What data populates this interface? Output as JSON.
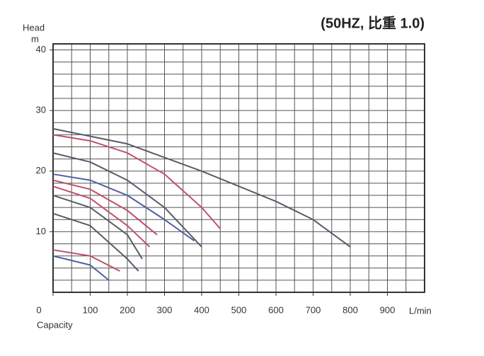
{
  "chart_data": {
    "type": "line",
    "title": "(50HZ, 比重 1.0)",
    "y_label": "Head",
    "y_unit": "m",
    "x_unit": "L/min",
    "x_label": "Capacity",
    "xlim": [
      0,
      1000
    ],
    "ylim": [
      0,
      41
    ],
    "xticks": [
      0,
      100,
      200,
      300,
      400,
      500,
      600,
      700,
      800,
      900
    ],
    "yticks": [
      10,
      20,
      30,
      40
    ],
    "grid": true,
    "minor_grid": {
      "x_step": 50,
      "y_step": 2
    },
    "series": [
      {
        "color": "#5a5a6a",
        "x": [
          0,
          200,
          400,
          600,
          700,
          800
        ],
        "values": [
          27,
          24.5,
          20,
          15,
          12,
          7.5
        ]
      },
      {
        "color": "#c0506a",
        "x": [
          0,
          100,
          200,
          300,
          400,
          450
        ],
        "values": [
          26,
          25,
          23,
          19.5,
          14,
          10.5
        ]
      },
      {
        "color": "#5a5a6a",
        "x": [
          0,
          100,
          200,
          300,
          400
        ],
        "values": [
          23,
          21.5,
          18.5,
          14,
          7.5
        ]
      },
      {
        "color": "#5060a0",
        "x": [
          0,
          100,
          200,
          300,
          380
        ],
        "values": [
          19.5,
          18.5,
          16,
          12,
          8.5
        ]
      },
      {
        "color": "#c0506a",
        "x": [
          0,
          100,
          200,
          280
        ],
        "values": [
          18.5,
          17,
          13.5,
          9.5
        ]
      },
      {
        "color": "#c0506a",
        "x": [
          0,
          100,
          200,
          260
        ],
        "values": [
          17.5,
          15.5,
          11,
          7.5
        ]
      },
      {
        "color": "#5a5a6a",
        "x": [
          0,
          100,
          200,
          240
        ],
        "values": [
          16,
          14,
          9.5,
          5.5
        ]
      },
      {
        "color": "#5a5a6a",
        "x": [
          0,
          100,
          200,
          230
        ],
        "values": [
          13,
          11,
          5.5,
          3.5
        ]
      },
      {
        "color": "#c0506a",
        "x": [
          0,
          100,
          180
        ],
        "values": [
          7,
          6,
          3.5
        ]
      },
      {
        "color": "#5060a0",
        "x": [
          0,
          100,
          150
        ],
        "values": [
          6,
          4.5,
          2
        ]
      }
    ]
  }
}
